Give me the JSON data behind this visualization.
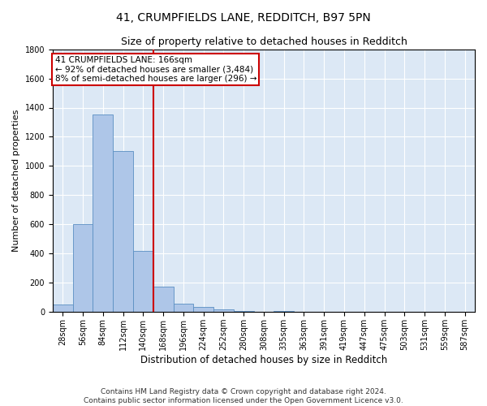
{
  "title": "41, CRUMPFIELDS LANE, REDDITCH, B97 5PN",
  "subtitle": "Size of property relative to detached houses in Redditch",
  "xlabel": "Distribution of detached houses by size in Redditch",
  "ylabel": "Number of detached properties",
  "categories": [
    "28sqm",
    "56sqm",
    "84sqm",
    "112sqm",
    "140sqm",
    "168sqm",
    "196sqm",
    "224sqm",
    "252sqm",
    "280sqm",
    "308sqm",
    "335sqm",
    "363sqm",
    "391sqm",
    "419sqm",
    "447sqm",
    "475sqm",
    "503sqm",
    "531sqm",
    "559sqm",
    "587sqm"
  ],
  "values": [
    50,
    600,
    1350,
    1100,
    420,
    175,
    60,
    35,
    20,
    10,
    0,
    10,
    0,
    0,
    0,
    0,
    0,
    0,
    0,
    0,
    0
  ],
  "bar_color": "#aec6e8",
  "bar_edge_color": "#5a8fc2",
  "vline_x_index": 5,
  "vline_color": "#cc0000",
  "annotation_text": "41 CRUMPFIELDS LANE: 166sqm\n← 92% of detached houses are smaller (3,484)\n8% of semi-detached houses are larger (296) →",
  "annotation_box_color": "#ffffff",
  "annotation_box_edge": "#cc0000",
  "ylim": [
    0,
    1800
  ],
  "yticks": [
    0,
    200,
    400,
    600,
    800,
    1000,
    1200,
    1400,
    1600,
    1800
  ],
  "footer": "Contains HM Land Registry data © Crown copyright and database right 2024.\nContains public sector information licensed under the Open Government Licence v3.0.",
  "background_color": "#dce8f5",
  "grid_color": "#ffffff",
  "title_fontsize": 10,
  "subtitle_fontsize": 9,
  "tick_fontsize": 7,
  "ylabel_fontsize": 8,
  "xlabel_fontsize": 8.5,
  "footer_fontsize": 6.5,
  "annotation_fontsize": 7.5
}
